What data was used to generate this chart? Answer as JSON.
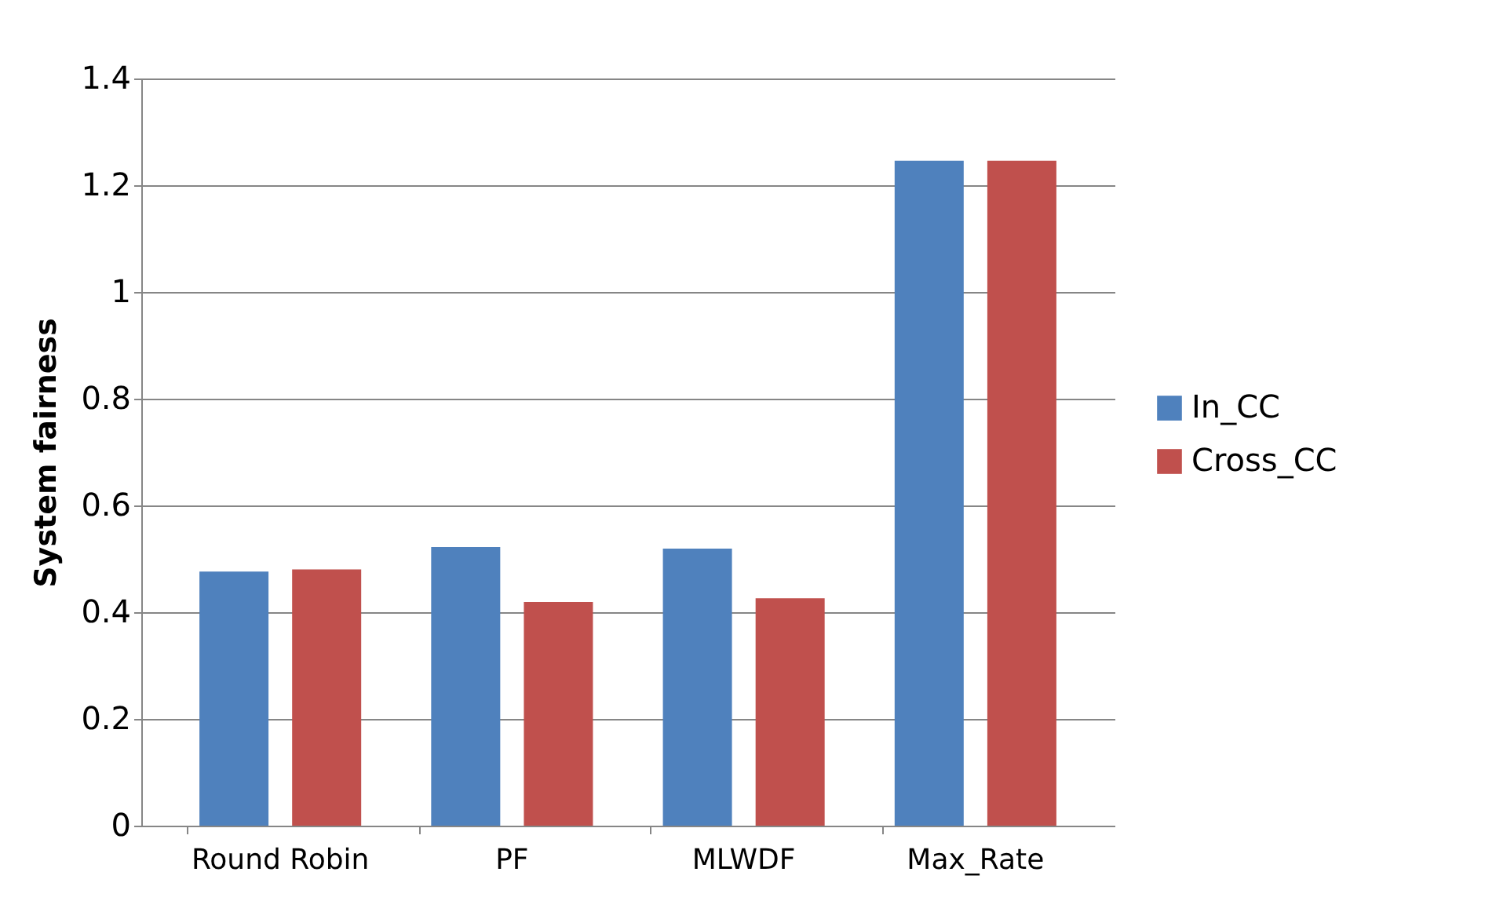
{
  "chart_data": {
    "type": "bar",
    "ylabel": "System fairness",
    "categories": [
      "Round Robin",
      "PF",
      "MLWDF",
      "Max_Rate"
    ],
    "series": [
      {
        "name": "In_CC",
        "color": "#4f81bd",
        "values": [
          0.476,
          0.522,
          0.519,
          1.246
        ]
      },
      {
        "name": "Cross_CC",
        "color": "#c0504d",
        "values": [
          0.48,
          0.419,
          0.426,
          1.246
        ]
      }
    ],
    "ylim": [
      0,
      1.4
    ],
    "yticks": [
      0,
      0.2,
      0.4,
      0.6,
      0.8,
      1,
      1.2,
      1.4
    ],
    "grid": "y",
    "legend": "right"
  }
}
